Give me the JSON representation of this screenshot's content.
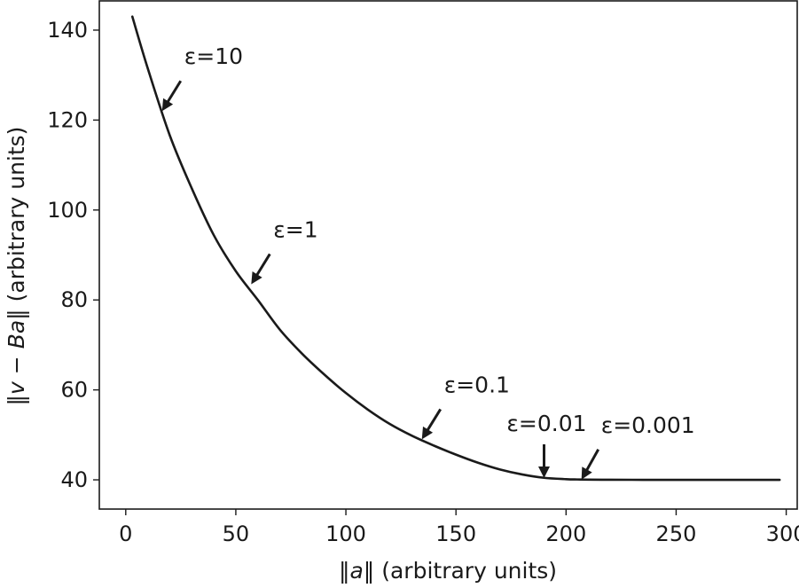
{
  "chart_data": {
    "type": "line",
    "xlabel_parts": [
      "‖",
      "a",
      "‖ (arbitrary units)"
    ],
    "ylabel_parts": [
      "‖",
      "v",
      " − ",
      "Ba",
      "‖ (arbitrary units)"
    ],
    "xlim": [
      -12,
      305
    ],
    "ylim": [
      33.5,
      146.5
    ],
    "x_ticks": [
      0,
      50,
      100,
      150,
      200,
      250,
      300
    ],
    "y_ticks": [
      40,
      60,
      80,
      100,
      120,
      140
    ],
    "x_tick_labels": [
      "0",
      "50",
      "100",
      "150",
      "200",
      "250",
      "300"
    ],
    "y_tick_labels": [
      "40",
      "60",
      "80",
      "100",
      "120",
      "140"
    ],
    "grid": false,
    "series": [
      {
        "x": [
          3,
          10,
          20,
          30,
          40,
          50,
          60,
          70,
          80,
          90,
          100,
          110,
          120,
          130,
          140,
          150,
          160,
          170,
          180,
          190,
          200,
          205,
          210,
          220,
          230,
          240,
          250,
          260,
          270,
          280,
          290,
          297
        ],
        "y": [
          143,
          131.5,
          116.6,
          104.8,
          94.4,
          86.4,
          80,
          73.4,
          68.1,
          63.5,
          59.3,
          55.6,
          52.4,
          49.8,
          47.6,
          45.6,
          43.8,
          42.3,
          41.2,
          40.45,
          40.15,
          40.08,
          40.05,
          40.02,
          40.01,
          40.0,
          40.0,
          40.0,
          40.0,
          40.0,
          40.0,
          40.0
        ]
      }
    ],
    "annotations": [
      {
        "text": "ε=10",
        "x": 16.5,
        "y": 122
      },
      {
        "text": "ε=1",
        "x": 57,
        "y": 83.5
      },
      {
        "text": "ε=0.1",
        "x": 134.5,
        "y": 49
      },
      {
        "text": "ε=0.01",
        "x": 190,
        "y": 40.4
      },
      {
        "text": "ε=0.001",
        "x": 207,
        "y": 40.05
      }
    ]
  }
}
